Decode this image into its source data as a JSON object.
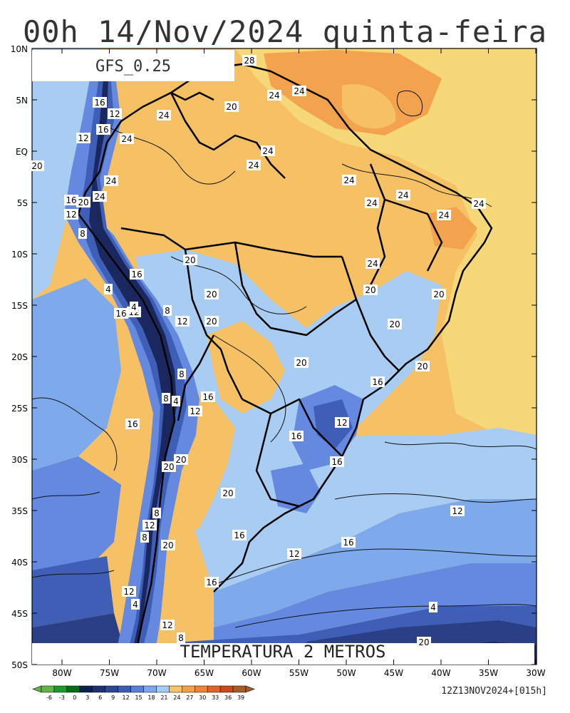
{
  "header": {
    "title": "00h 14/Nov/2024 quinta-feira",
    "model_label": "GFS_0.25"
  },
  "map": {
    "variable_label": "TEMPERATURA 2 METROS",
    "lat_ticks": [
      "10N",
      "5N",
      "EQ",
      "5S",
      "10S",
      "15S",
      "20S",
      "25S",
      "30S",
      "35S",
      "40S",
      "45S",
      "50S"
    ],
    "lon_ticks": [
      "80W",
      "75W",
      "70W",
      "65W",
      "60W",
      "55W",
      "50W",
      "45W",
      "40W",
      "35W",
      "30W"
    ],
    "contour_labels": [
      "28",
      "24",
      "24",
      "24",
      "24",
      "24",
      "24",
      "24",
      "24",
      "24",
      "24",
      "24",
      "24",
      "24",
      "24",
      "20",
      "20",
      "20",
      "20",
      "20",
      "20",
      "20",
      "20",
      "20",
      "20",
      "20",
      "20",
      "20",
      "20",
      "20",
      "16",
      "16",
      "16",
      "16",
      "16",
      "16",
      "16",
      "16",
      "16",
      "16",
      "16",
      "16",
      "16",
      "12",
      "12",
      "12",
      "12",
      "12",
      "12",
      "12",
      "12",
      "12",
      "12",
      "12",
      "12",
      "8",
      "8",
      "8",
      "8",
      "8",
      "8",
      "8",
      "4",
      "4",
      "4",
      "4",
      "4",
      "20"
    ],
    "footer_code": "12Z13NOV2024+[015h]"
  },
  "colorbar": {
    "ticks": [
      "-6",
      "-3",
      "0",
      "3",
      "6",
      "9",
      "12",
      "15",
      "18",
      "21",
      "24",
      "27",
      "30",
      "33",
      "36",
      "39"
    ],
    "colors": [
      "#63b34a",
      "#1d9a2e",
      "#0a6b1a",
      "#0e1f4a",
      "#1f3070",
      "#2e4690",
      "#3c5cb4",
      "#5a7fd6",
      "#7ea6e8",
      "#a6ccf5",
      "#f5c469",
      "#f2a04a",
      "#f08238",
      "#e06428",
      "#c84a1e",
      "#a85a28"
    ]
  },
  "palette": {
    "ocean_north": "#f7d878",
    "land_warm": "#f6c065",
    "land_orange": "#f3a24e",
    "light_blue": "#a9cdf2",
    "mid_blue": "#7ea9ea",
    "blue": "#6489df",
    "deep_blue": "#3e5fb5",
    "navy": "#2b3f86",
    "dark_navy": "#1b2860"
  }
}
